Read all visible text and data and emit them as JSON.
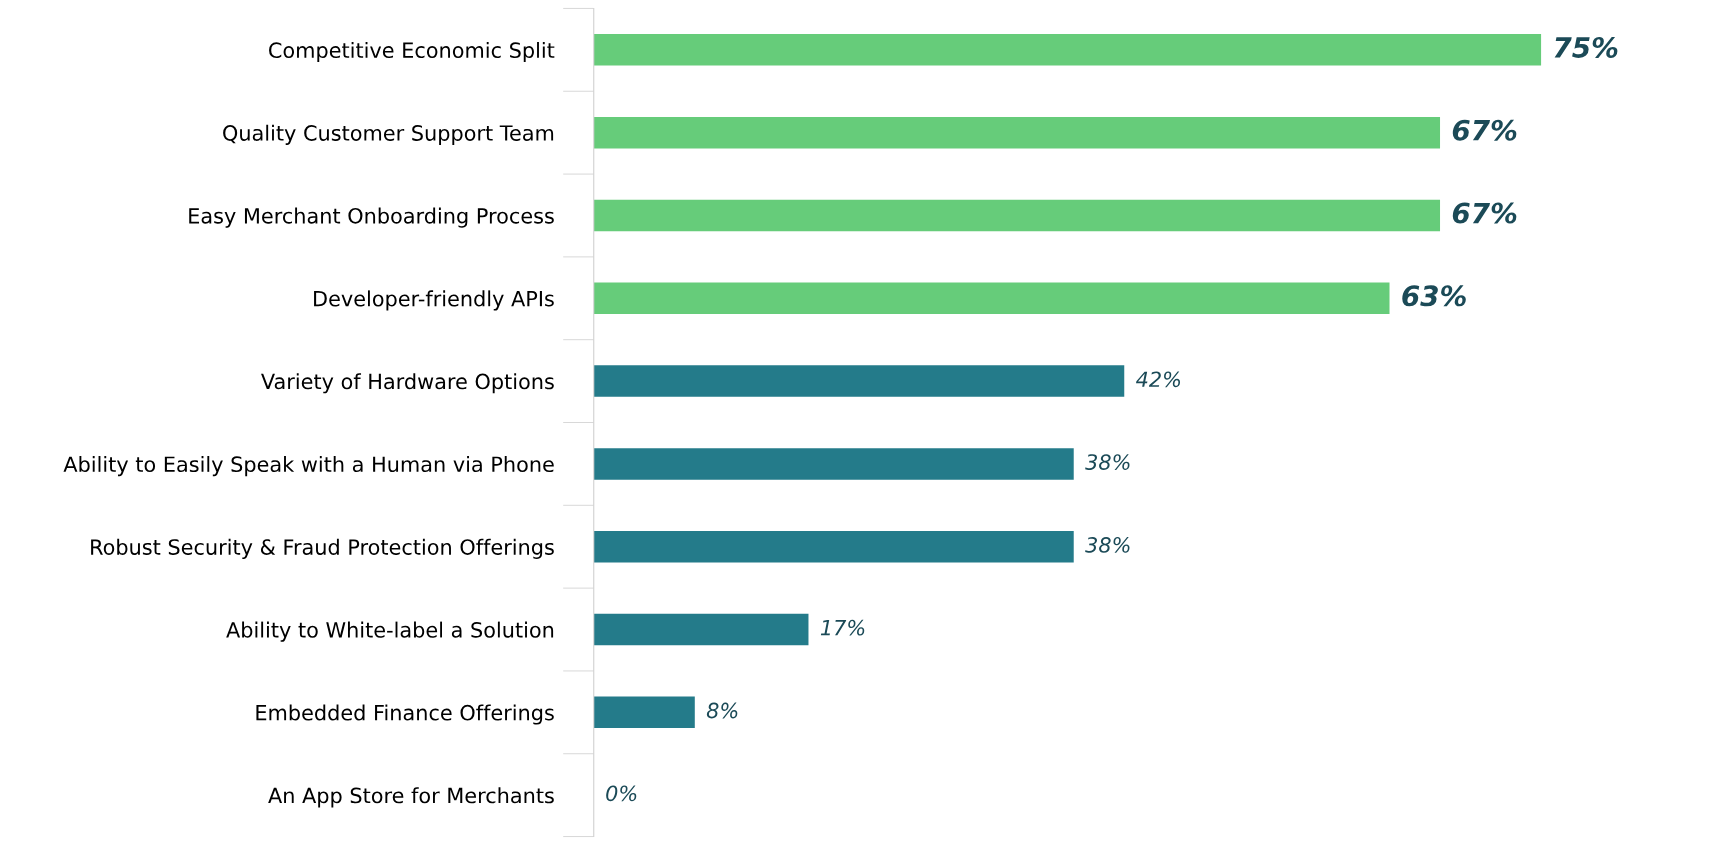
{
  "chart_data": {
    "type": "bar",
    "orientation": "horizontal",
    "categories": [
      "Competitive Economic Split",
      "Quality Customer Support Team",
      "Easy Merchant Onboarding Process",
      "Developer-friendly APIs",
      "Variety of Hardware Options",
      "Ability to Easily Speak with a Human via Phone",
      "Robust Security & Fraud Protection Offerings",
      "Ability to White-label a Solution",
      "Embedded Finance Offerings",
      "An App Store for Merchants"
    ],
    "values": [
      75,
      67,
      67,
      63,
      42,
      38,
      38,
      17,
      8,
      0
    ],
    "value_labels": [
      "75%",
      "67%",
      "67%",
      "63%",
      "42%",
      "38%",
      "38%",
      "17%",
      "8%",
      "0%"
    ],
    "colors": [
      "#66cc7a",
      "#66cc7a",
      "#66cc7a",
      "#66cc7a",
      "#247b8a",
      "#247b8a",
      "#247b8a",
      "#247b8a",
      "#247b8a",
      "#247b8a"
    ],
    "grid": false,
    "legend": false
  }
}
